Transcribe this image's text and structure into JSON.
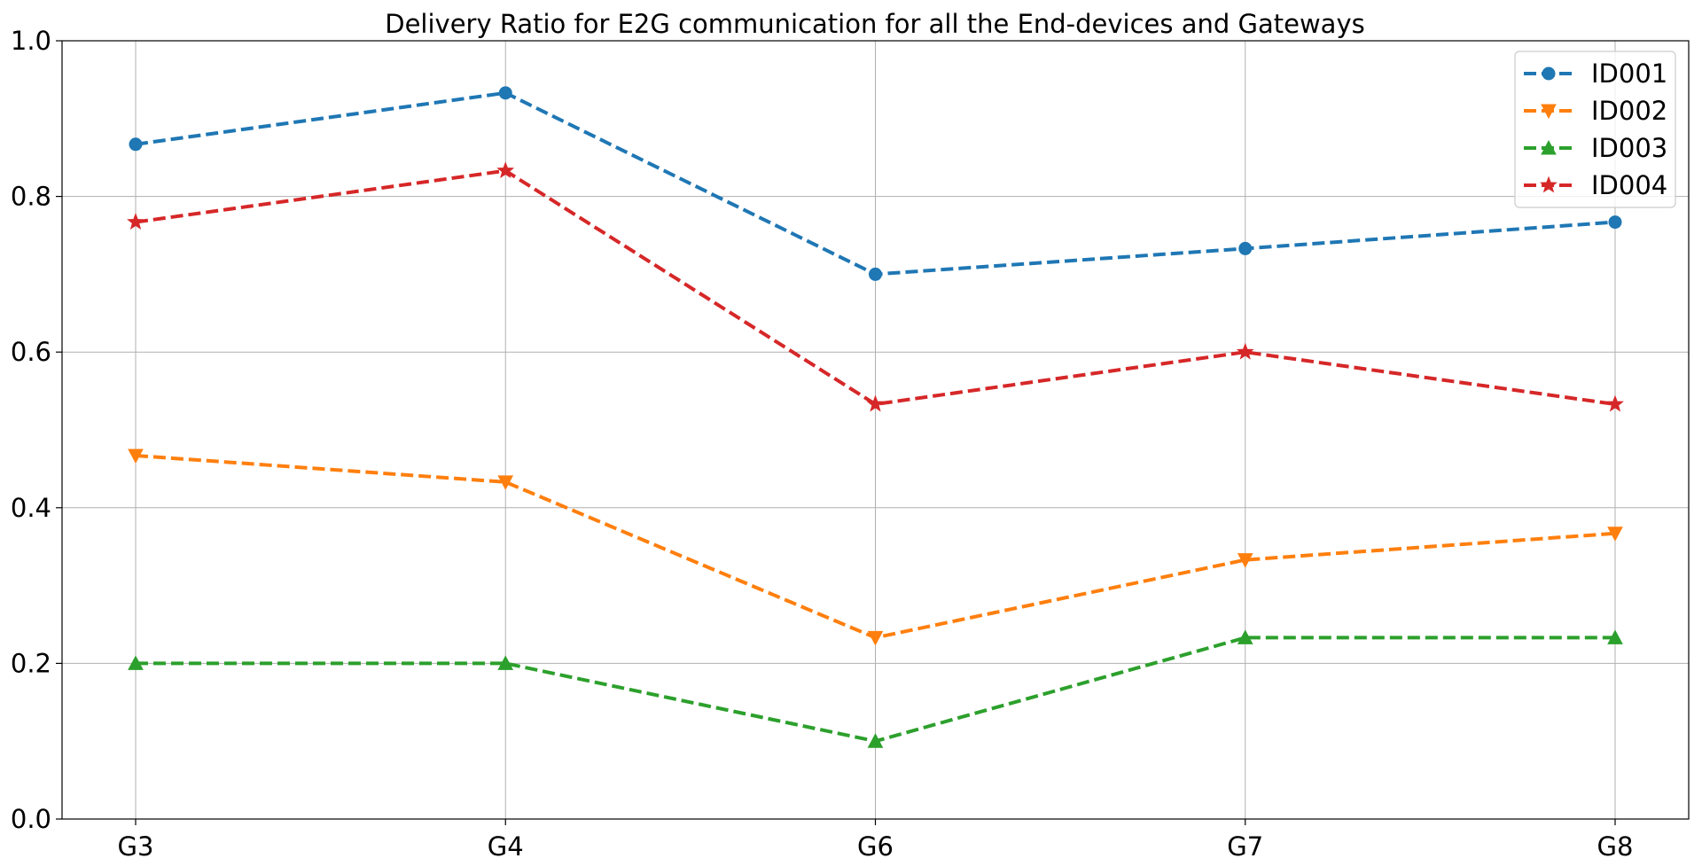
{
  "chart_data": {
    "type": "line",
    "title": "Delivery Ratio for E2G communication for all the End-devices and Gateways",
    "xlabel": "",
    "ylabel": "",
    "categories": [
      "G3",
      "G4",
      "G6",
      "G7",
      "G8"
    ],
    "ylim": [
      0,
      1
    ],
    "yticks": [
      "0.0",
      "0.2",
      "0.4",
      "0.6",
      "0.8",
      "1.0"
    ],
    "grid": true,
    "legend_position": "top-right",
    "series": [
      {
        "name": "ID001",
        "color": "#1f77b4",
        "marker": "circle",
        "values": [
          0.867,
          0.933,
          0.7,
          0.733,
          0.767
        ]
      },
      {
        "name": "ID002",
        "color": "#ff7f0e",
        "marker": "triangle-down",
        "values": [
          0.467,
          0.433,
          0.233,
          0.333,
          0.367
        ]
      },
      {
        "name": "ID003",
        "color": "#2ca02c",
        "marker": "triangle-up",
        "values": [
          0.2,
          0.2,
          0.1,
          0.233,
          0.233
        ]
      },
      {
        "name": "ID004",
        "color": "#d62728",
        "marker": "star",
        "values": [
          0.767,
          0.833,
          0.533,
          0.6,
          0.533
        ]
      }
    ]
  }
}
